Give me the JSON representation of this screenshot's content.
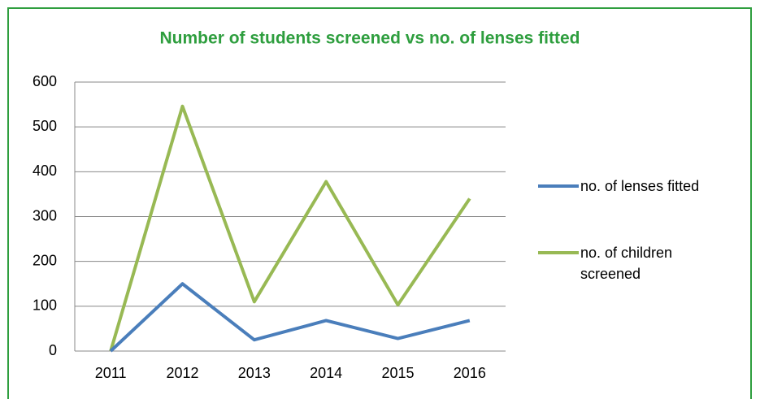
{
  "chart_data": {
    "type": "line",
    "title": "Number of students screened  vs no. of lenses fitted",
    "categories": [
      "2011",
      "2012",
      "2013",
      "2014",
      "2015",
      "2016"
    ],
    "series": [
      {
        "name": "no. of lenses fitted",
        "color": "#4a7ebb",
        "values": [
          0,
          150,
          25,
          68,
          28,
          68
        ]
      },
      {
        "name": "no. of children screened",
        "color": "#98b954",
        "values": [
          0,
          546,
          110,
          378,
          103,
          340
        ]
      }
    ],
    "ylim": [
      0,
      600
    ],
    "yticks": [
      0,
      100,
      200,
      300,
      400,
      500,
      600
    ],
    "grid": true,
    "legend": "right"
  }
}
